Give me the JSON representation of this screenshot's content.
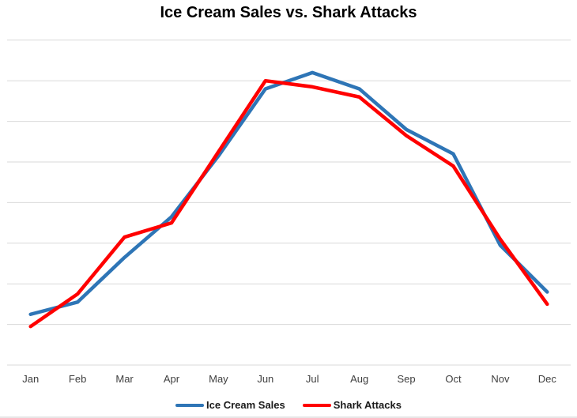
{
  "title": "Ice Cream Sales vs. Shark Attacks",
  "colors": {
    "ice_cream": "#2E75B6",
    "shark": "#FF0000",
    "gridline": "#D9D9D9",
    "axis_text": "#3f3f3f"
  },
  "legend": {
    "items": [
      {
        "label": "Ice Cream Sales",
        "color": "#2E75B6"
      },
      {
        "label": "Shark Attacks",
        "color": "#FF0000"
      }
    ]
  },
  "chart_data": {
    "type": "line",
    "title": "Ice Cream Sales vs. Shark Attacks",
    "categories": [
      "Jan",
      "Feb",
      "Mar",
      "Apr",
      "May",
      "Jun",
      "Jul",
      "Aug",
      "Sep",
      "Oct",
      "Nov",
      "Dec"
    ],
    "series": [
      {
        "name": "Ice Cream Sales",
        "color": "#2E75B6",
        "values": [
          1.25,
          1.55,
          2.65,
          3.65,
          5.15,
          6.8,
          7.2,
          6.8,
          5.8,
          5.2,
          2.95,
          1.8
        ]
      },
      {
        "name": "Shark Attacks",
        "color": "#FF0000",
        "values": [
          0.95,
          1.75,
          3.15,
          3.5,
          5.25,
          7.0,
          6.85,
          6.6,
          5.65,
          4.9,
          3.1,
          1.5
        ]
      }
    ],
    "xlabel": "",
    "ylabel": "",
    "ylim": [
      0,
      8
    ],
    "gridline_count": 9,
    "grid_color": "#D9D9D9",
    "y_axis_labels_visible": false,
    "legend_position": "bottom"
  }
}
